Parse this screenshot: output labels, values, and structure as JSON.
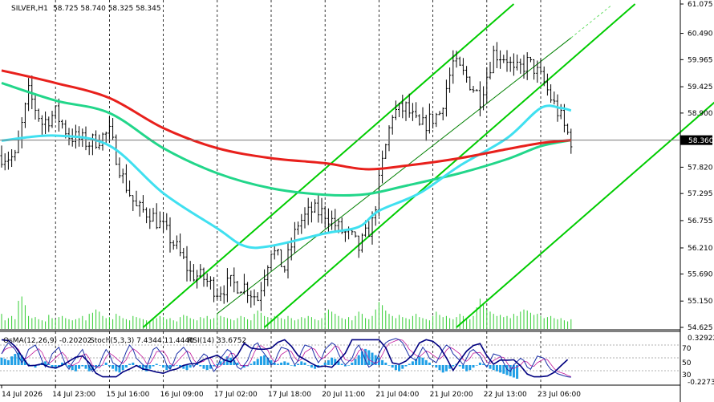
{
  "chart_data": {
    "type": "line",
    "title": "SILVER,H1",
    "ohlc_text": "58.725 58.740 58.325 58.345",
    "current_price": 58.36,
    "current_price_label": "58.360",
    "y_range": [
      54.625,
      61.075
    ],
    "y_ticks": [
      "61.075",
      "60.490",
      "59.965",
      "59.425",
      "58.900",
      "58.360",
      "57.820",
      "57.295",
      "56.755",
      "56.210",
      "55.690",
      "55.150",
      "54.625"
    ],
    "x_ticks": [
      "14 Jul 2026",
      "14 Jul 23:00",
      "15 Jul 16:00",
      "16 Jul 09:00",
      "17 Jul 02:00",
      "17 Jul 18:00",
      "20 Jul 11:00",
      "21 Jul 04:00",
      "21 Jul 20:00",
      "22 Jul 13:00",
      "23 Jul 06:00"
    ],
    "x_tick_index": [
      0,
      16,
      32,
      48,
      64,
      80,
      96,
      112,
      128,
      144,
      160
    ],
    "n_bars": 170,
    "close_path": [
      [
        0,
        58.05
      ],
      [
        4,
        58.0
      ],
      [
        8,
        59.3
      ],
      [
        12,
        58.7
      ],
      [
        16,
        58.9
      ],
      [
        20,
        58.45
      ],
      [
        26,
        58.3
      ],
      [
        32,
        58.5
      ],
      [
        36,
        57.6
      ],
      [
        40,
        57.0
      ],
      [
        44,
        56.9
      ],
      [
        48,
        56.6
      ],
      [
        52,
        56.2
      ],
      [
        56,
        55.7
      ],
      [
        60,
        55.6
      ],
      [
        64,
        55.35
      ],
      [
        68,
        55.5
      ],
      [
        72,
        55.45
      ],
      [
        76,
        55.2
      ],
      [
        80,
        56.2
      ],
      [
        84,
        55.8
      ],
      [
        88,
        56.7
      ],
      [
        92,
        56.95
      ],
      [
        96,
        56.9
      ],
      [
        100,
        56.6
      ],
      [
        104,
        56.4
      ],
      [
        106,
        56.2
      ],
      [
        110,
        56.7
      ],
      [
        113,
        57.9
      ],
      [
        116,
        58.9
      ],
      [
        120,
        59.0
      ],
      [
        124,
        58.6
      ],
      [
        130,
        58.9
      ],
      [
        134,
        59.9
      ],
      [
        138,
        59.6
      ],
      [
        142,
        59.2
      ],
      [
        146,
        60.1
      ],
      [
        150,
        60.0
      ],
      [
        152,
        59.7
      ],
      [
        156,
        59.9
      ],
      [
        158,
        59.8
      ],
      [
        161,
        59.5
      ],
      [
        163,
        59.2
      ],
      [
        166,
        58.8
      ],
      [
        167,
        58.62
      ],
      [
        169,
        58.36
      ]
    ],
    "indicators": {
      "ma_red": [
        [
          0,
          59.75
        ],
        [
          16,
          59.5
        ],
        [
          32,
          59.2
        ],
        [
          48,
          58.6
        ],
        [
          64,
          58.2
        ],
        [
          80,
          58.0
        ],
        [
          96,
          57.9
        ],
        [
          108,
          57.78
        ],
        [
          120,
          57.85
        ],
        [
          136,
          58.0
        ],
        [
          150,
          58.18
        ],
        [
          160,
          58.3
        ],
        [
          169,
          58.36
        ]
      ],
      "ma_green": [
        [
          0,
          59.5
        ],
        [
          16,
          59.15
        ],
        [
          32,
          58.9
        ],
        [
          48,
          58.2
        ],
        [
          64,
          57.7
        ],
        [
          80,
          57.4
        ],
        [
          96,
          57.27
        ],
        [
          108,
          57.28
        ],
        [
          120,
          57.45
        ],
        [
          136,
          57.7
        ],
        [
          150,
          57.98
        ],
        [
          160,
          58.24
        ],
        [
          169,
          58.36
        ]
      ],
      "ma_cyan": [
        [
          0,
          58.35
        ],
        [
          16,
          58.45
        ],
        [
          32,
          58.25
        ],
        [
          48,
          57.3
        ],
        [
          64,
          56.6
        ],
        [
          72,
          56.25
        ],
        [
          80,
          56.25
        ],
        [
          96,
          56.5
        ],
        [
          106,
          56.63
        ],
        [
          112,
          56.95
        ],
        [
          124,
          57.3
        ],
        [
          136,
          57.85
        ],
        [
          150,
          58.4
        ],
        [
          160,
          59.0
        ],
        [
          166,
          59.0
        ],
        [
          169,
          58.95
        ]
      ]
    },
    "channel_lines": [
      {
        "color": "#00cc00",
        "points": [
          [
            42,
            54.625
          ],
          [
            152,
            61.075
          ]
        ]
      },
      {
        "color": "#00cc00",
        "points": [
          [
            78,
            54.625
          ],
          [
            188,
            61.075
          ]
        ]
      },
      {
        "color": "#00cc00",
        "points": [
          [
            135,
            54.625
          ],
          [
            245,
            61.075
          ]
        ]
      },
      {
        "color": "#008000",
        "points": [
          [
            64,
            54.9
          ],
          [
            169,
            60.4
          ]
        ]
      }
    ],
    "volume_bars": [
      14,
      8,
      10,
      12,
      9,
      26,
      30,
      22,
      12,
      10,
      11,
      9,
      8,
      7,
      13,
      10,
      9,
      11,
      12,
      10,
      9,
      8,
      9,
      10,
      12,
      8,
      14,
      15,
      18,
      16,
      12,
      10,
      11,
      9,
      14,
      12,
      10,
      9,
      8,
      12,
      11,
      10,
      9,
      8,
      7,
      9,
      10,
      12,
      11,
      9,
      10,
      8,
      7,
      11,
      13,
      12,
      10,
      9,
      8,
      11,
      10,
      12,
      9,
      10,
      14,
      12,
      11,
      10,
      9,
      8,
      10,
      12,
      11,
      9,
      8,
      14,
      17,
      15,
      12,
      11,
      10,
      12,
      11,
      10,
      9,
      12,
      10,
      8,
      9,
      11,
      10,
      12,
      11,
      9,
      8,
      10,
      15,
      18,
      16,
      14,
      12,
      10,
      9,
      11,
      8,
      12,
      16,
      14,
      10,
      9,
      12,
      18,
      25,
      22,
      17,
      14,
      12,
      10,
      13,
      11,
      10,
      9,
      12,
      14,
      11,
      10,
      9,
      8,
      12,
      16,
      13,
      11,
      12,
      10,
      9,
      11,
      14,
      12,
      10,
      9,
      12,
      20,
      28,
      24,
      18,
      16,
      14,
      12,
      13,
      11,
      12,
      10,
      14,
      12,
      16,
      18,
      17,
      15,
      13,
      14,
      12,
      10,
      11,
      12,
      10,
      9,
      10,
      8,
      7,
      9
    ],
    "osma": {
      "label": "OsMA(12,26,9) -0.20202",
      "ticks": [
        "0.32922",
        "-0.22732"
      ],
      "values": [
        0.12,
        0.1,
        0.08,
        0.14,
        0.18,
        0.2,
        0.16,
        0.08,
        0.02,
        -0.02,
        -0.04,
        0.0,
        0.04,
        0.06,
        0.02,
        -0.04,
        -0.06,
        -0.02,
        0.04,
        0.02,
        -0.04,
        -0.08,
        -0.1,
        -0.06,
        -0.02,
        -0.06,
        -0.1,
        -0.08,
        -0.04,
        -0.02,
        0.0,
        0.04,
        -0.02,
        -0.06,
        -0.1,
        -0.12,
        -0.08,
        -0.04,
        0.02,
        0.04,
        0.0,
        -0.04,
        -0.08,
        -0.1,
        -0.06,
        -0.02,
        0.02,
        0.0,
        -0.04,
        -0.08,
        -0.06,
        -0.02,
        0.0,
        -0.04,
        -0.06,
        -0.08,
        -0.04,
        0.0,
        0.02,
        -0.02,
        -0.06,
        -0.08,
        -0.06,
        -0.02,
        0.02,
        0.06,
        0.1,
        0.14,
        0.12,
        0.08,
        0.04,
        0.0,
        -0.04,
        -0.02,
        0.02,
        0.06,
        0.1,
        0.14,
        0.16,
        0.12,
        0.08,
        0.04,
        0.02,
        0.04,
        0.06,
        0.04,
        0.0,
        -0.02,
        0.02,
        0.06,
        0.04,
        0.0,
        -0.04,
        -0.06,
        -0.04,
        0.0,
        0.04,
        0.08,
        0.12,
        0.1,
        0.06,
        0.02,
        -0.02,
        0.0,
        0.04,
        0.1,
        0.16,
        0.22,
        0.26,
        0.24,
        0.2,
        0.16,
        0.12,
        0.08,
        0.04,
        0.0,
        -0.04,
        -0.08,
        -0.1,
        -0.06,
        -0.02,
        0.02,
        0.06,
        0.1,
        0.14,
        0.12,
        0.08,
        0.04,
        0.0,
        -0.04,
        -0.08,
        -0.12,
        -0.1,
        -0.06,
        -0.02,
        0.02,
        -0.02,
        -0.06,
        -0.1,
        -0.08,
        -0.04,
        0.0,
        0.04,
        0.02,
        -0.02,
        -0.06,
        -0.08,
        -0.1,
        -0.12,
        -0.14,
        -0.16,
        -0.18,
        -0.2,
        -0.22
      ]
    },
    "stoch": {
      "label": "Stoch(5,3,3) 7.4344 11.4440",
      "main": [
        60,
        75,
        85,
        70,
        55,
        40,
        50,
        70,
        80,
        65,
        45,
        30,
        40,
        60,
        75,
        55,
        35,
        25,
        40,
        60,
        70,
        50,
        30,
        20,
        35,
        55,
        70,
        60,
        40,
        30,
        45,
        65,
        80,
        70,
        50,
        35,
        30,
        50,
        70,
        75,
        55,
        35,
        25,
        40,
        60,
        75,
        65,
        45,
        30,
        40,
        60,
        55,
        35,
        20,
        30,
        50,
        70,
        65,
        45,
        30,
        25,
        45,
        65,
        80,
        85,
        70,
        50,
        35,
        40,
        60,
        75,
        70,
        50,
        35,
        45,
        65,
        80,
        75,
        55,
        40,
        50,
        70,
        85,
        80,
        60,
        45,
        35,
        50,
        70,
        80,
        65,
        45,
        30,
        40,
        60,
        75,
        85,
        90,
        95,
        92,
        85,
        70,
        55,
        45,
        60,
        75,
        65,
        50,
        40,
        55,
        70,
        80,
        75,
        60,
        45,
        35,
        50,
        65,
        70,
        55,
        40,
        30,
        45,
        60,
        55,
        40,
        25,
        20,
        35,
        50,
        45,
        30,
        25,
        40,
        55,
        50,
        35,
        25,
        20,
        15,
        10,
        8,
        7
      ]
    },
    "rsi": {
      "label": "RSI(14) 33.6752",
      "levels": [
        "70",
        "50",
        "30"
      ]
    }
  }
}
